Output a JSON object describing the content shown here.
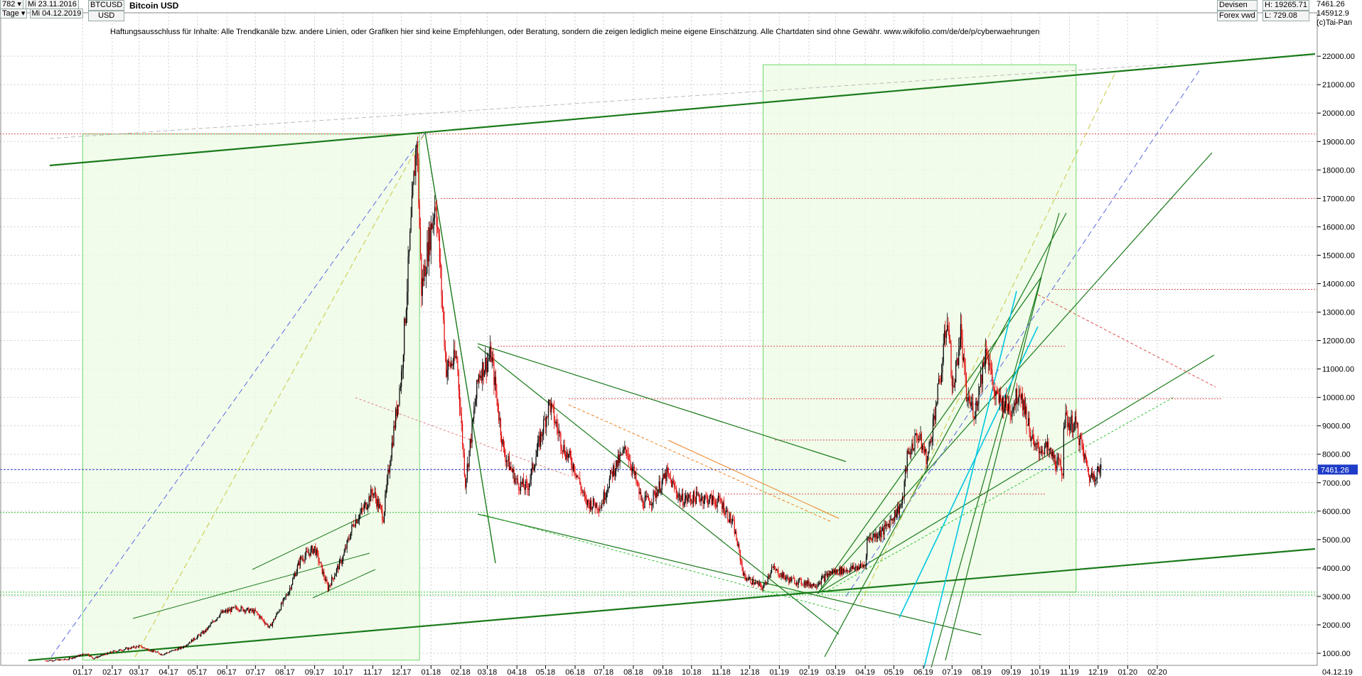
{
  "header": {
    "count": "782",
    "interval": "Tage",
    "date_from": "Mi 23.11.2016",
    "date_to": "Mi 04.12.2019",
    "symbol": "BTCUSD",
    "currency": "USD",
    "title": "Bitcoin USD",
    "market1": "Devisen",
    "market2": "Forex vwd",
    "high_label": "H: 19265.71",
    "low_label": "L: 729.08",
    "last_value": "7461.26",
    "volume_value": "145912.9",
    "copyright": "(c)Tai-Pan"
  },
  "disclaimer": "Haftungsausschluss für Inhalte: Alle Trendkanäle bzw. andere Linien, oder Grafiken hier sind keine Empfehlungen, oder Beratung, sondern die zeigen lediglich meine eigene Einschätzung. Alle Chartdaten sind ohne Gewähr.  www.wikifolio.com/de/de/p/cyberwaehrungen",
  "colors": {
    "up": "#000000",
    "down": "#e00000",
    "trend": "#1a7a1a",
    "channel_fill": "#eefbe6",
    "price_line": "#2233cc"
  },
  "chart_data": {
    "type": "line",
    "title": "Bitcoin USD",
    "x_start": "2016-11-23",
    "x_end": "2019-12-04",
    "ylim": [
      700,
      22700
    ],
    "y_ticks": [
      "1000.00",
      "2000.00",
      "3000.00",
      "4000.00",
      "5000.00",
      "6000.00",
      "7000.00",
      "8000.00",
      "9000.00",
      "10000.00",
      "11000.00",
      "12000.00",
      "13000.00",
      "14000.00",
      "15000.00",
      "16000.00",
      "17000.00",
      "18000.00",
      "19000.00",
      "20000.00",
      "21000.00",
      "22000.00"
    ],
    "x_ticks": [
      "01.17",
      "02.17",
      "03.17",
      "04.17",
      "05.17",
      "06.17",
      "07.17",
      "08.17",
      "09.17",
      "10.17",
      "11.17",
      "12.17",
      "01.18",
      "02.18",
      "03.18",
      "04.18",
      "05.18",
      "06.18",
      "07.18",
      "08.18",
      "09.18",
      "10.18",
      "11.18",
      "12.18",
      "01.19",
      "02.19",
      "03.19",
      "04.19",
      "05.19",
      "06.19",
      "07.19",
      "08.19",
      "09.19",
      "10.19",
      "11.19",
      "12.19",
      "01.20",
      "02.20"
    ],
    "x_end_label": "04.12.19",
    "current_price": 7461.26,
    "current_price_label": "7461.26",
    "series": [
      {
        "name": "BTCUSD",
        "x": [
          "2016-11-23",
          "2016-12-15",
          "2017-01-05",
          "2017-01-12",
          "2017-02-01",
          "2017-03-01",
          "2017-03-25",
          "2017-04-15",
          "2017-05-10",
          "2017-05-25",
          "2017-06-12",
          "2017-07-01",
          "2017-07-16",
          "2017-08-05",
          "2017-08-17",
          "2017-09-01",
          "2017-09-15",
          "2017-10-01",
          "2017-10-12",
          "2017-10-21",
          "2017-11-01",
          "2017-11-12",
          "2017-11-20",
          "2017-12-01",
          "2017-12-10",
          "2017-12-17",
          "2017-12-22",
          "2018-01-06",
          "2018-01-17",
          "2018-01-28",
          "2018-02-06",
          "2018-02-20",
          "2018-03-05",
          "2018-03-18",
          "2018-04-01",
          "2018-04-12",
          "2018-05-05",
          "2018-05-20",
          "2018-06-01",
          "2018-06-12",
          "2018-06-28",
          "2018-07-10",
          "2018-07-25",
          "2018-08-10",
          "2018-08-20",
          "2018-09-05",
          "2018-09-20",
          "2018-10-10",
          "2018-11-01",
          "2018-11-14",
          "2018-11-25",
          "2018-12-15",
          "2018-12-24",
          "2019-01-10",
          "2019-02-07",
          "2019-02-24",
          "2019-03-15",
          "2019-04-01",
          "2019-04-03",
          "2019-04-20",
          "2019-05-10",
          "2019-05-15",
          "2019-05-26",
          "2019-06-05",
          "2019-06-20",
          "2019-06-26",
          "2019-07-02",
          "2019-07-10",
          "2019-07-16",
          "2019-07-25",
          "2019-08-06",
          "2019-08-15",
          "2019-09-01",
          "2019-09-10",
          "2019-09-25",
          "2019-10-08",
          "2019-10-25",
          "2019-10-26",
          "2019-11-08",
          "2019-11-22",
          "2019-12-04"
        ],
        "values": [
          740,
          780,
          1000,
          820,
          1050,
          1250,
          960,
          1200,
          1800,
          2400,
          2600,
          2450,
          1900,
          3200,
          4300,
          4700,
          3300,
          4400,
          5600,
          6000,
          6700,
          5800,
          8100,
          10800,
          15500,
          19200,
          13800,
          17000,
          11000,
          11400,
          7000,
          10800,
          11500,
          8100,
          7000,
          6800,
          9800,
          8200,
          7500,
          6300,
          6200,
          7400,
          8200,
          6300,
          6400,
          7300,
          6400,
          6500,
          6300,
          5500,
          3700,
          3300,
          4000,
          3600,
          3400,
          3850,
          3950,
          4100,
          5000,
          5300,
          6300,
          7900,
          8700,
          7800,
          11000,
          12900,
          10200,
          12300,
          10000,
          9500,
          11800,
          10000,
          9600,
          10300,
          8200,
          8200,
          7400,
          9200,
          9000,
          7200,
          7461
        ]
      }
    ]
  }
}
